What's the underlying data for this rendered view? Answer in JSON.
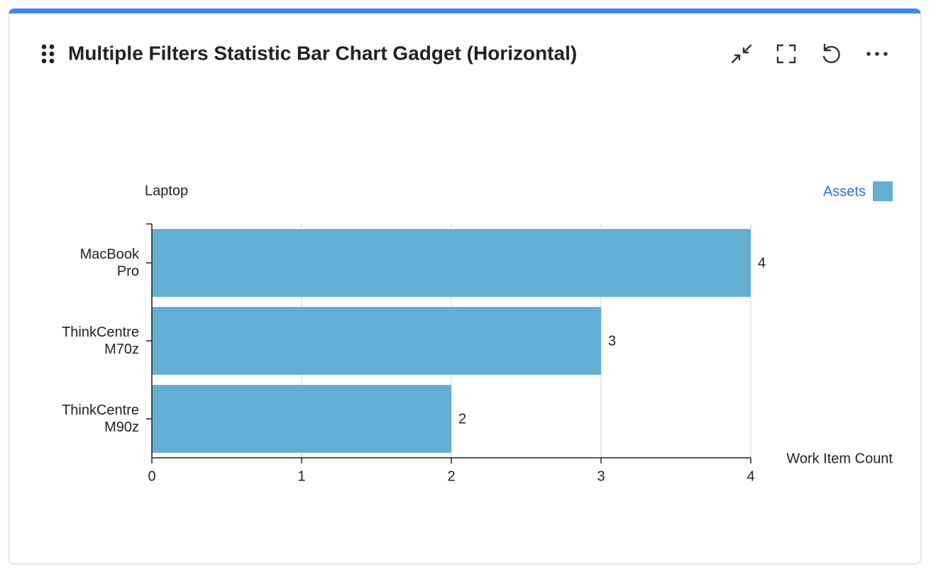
{
  "chart_data": {
    "type": "hbar",
    "title": "Multiple Filters Statistic Bar Chart Gadget (Horizontal)",
    "y_label": "Laptop",
    "x_label": "Work Item Count",
    "categories": [
      "MacBook Pro",
      "ThinkCentre M70z",
      "ThinkCentre M90z"
    ],
    "series": [
      {
        "name": "Assets",
        "color": "#63aed3",
        "values": [
          4,
          3,
          2
        ]
      }
    ],
    "xlim": [
      0,
      4
    ],
    "xticks": [
      0,
      1,
      2,
      3,
      4
    ],
    "grid": true,
    "legend": "top-right"
  }
}
